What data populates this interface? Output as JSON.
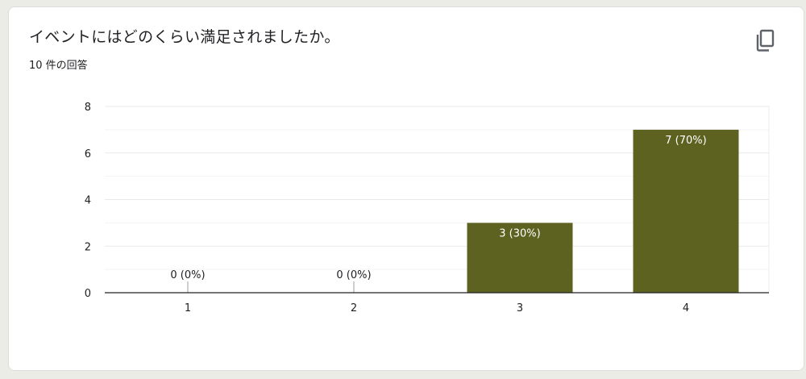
{
  "question": {
    "title": "イベントにはどのくらい満足されましたか。",
    "response_count": "10 件の回答"
  },
  "toolbar": {
    "copy_icon": "copy-icon"
  },
  "colors": {
    "bar": "#5e6220",
    "grid": "#e8e8e8",
    "axis": "#202124",
    "label_inside": "#ffffff",
    "label_outside": "#202124"
  },
  "chart_data": {
    "type": "bar",
    "categories": [
      "1",
      "2",
      "3",
      "4"
    ],
    "values": [
      0,
      0,
      3,
      7
    ],
    "data_labels": [
      "0 (0%)",
      "0 (0%)",
      "3 (30%)",
      "7 (70%)"
    ],
    "ylim": [
      0,
      8
    ],
    "yticks": [
      "0",
      "2",
      "4",
      "6",
      "8"
    ],
    "grid": true
  }
}
